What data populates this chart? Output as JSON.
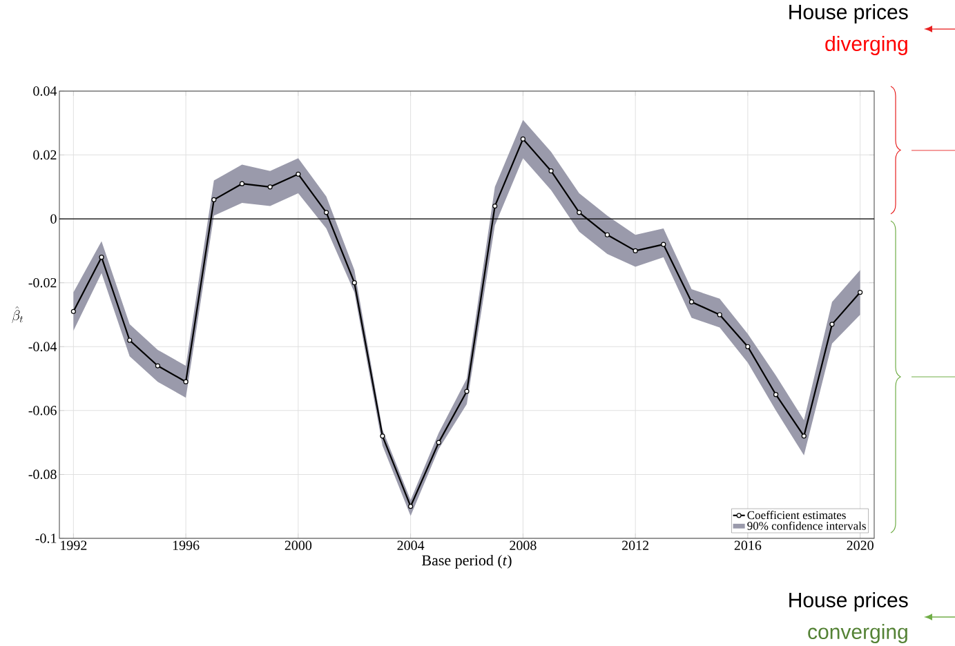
{
  "chart_data": {
    "type": "line",
    "xlabel": "Base period (*t*)",
    "ylabel": "\\hat{\\beta}_t",
    "x": [
      1992,
      1993,
      1994,
      1995,
      1996,
      1997,
      1998,
      1999,
      2000,
      2001,
      2002,
      2003,
      2004,
      2005,
      2006,
      2007,
      2008,
      2009,
      2010,
      2011,
      2012,
      2013,
      2014,
      2015,
      2016,
      2017,
      2018,
      2019,
      2020
    ],
    "series": [
      {
        "name": "Coefficient estimates",
        "color": "#000000",
        "lower": [
          -0.035,
          -0.017,
          -0.043,
          -0.051,
          -0.056,
          0.001,
          0.005,
          0.004,
          0.008,
          -0.003,
          -0.023,
          -0.071,
          -0.093,
          -0.072,
          -0.058,
          -0.002,
          0.019,
          0.009,
          -0.004,
          -0.011,
          -0.015,
          -0.012,
          -0.031,
          -0.034,
          -0.045,
          -0.06,
          -0.074,
          -0.039,
          -0.03
        ],
        "upper": [
          -0.023,
          -0.007,
          -0.033,
          -0.041,
          -0.046,
          0.012,
          0.017,
          0.015,
          0.019,
          0.007,
          -0.016,
          -0.066,
          -0.088,
          -0.067,
          -0.05,
          0.01,
          0.031,
          0.021,
          0.008,
          0.001,
          -0.005,
          -0.003,
          -0.022,
          -0.025,
          -0.036,
          -0.049,
          -0.063,
          -0.026,
          -0.016
        ],
        "values": [
          -0.029,
          -0.012,
          -0.038,
          -0.046,
          -0.051,
          0.006,
          0.011,
          0.01,
          0.014,
          0.002,
          -0.02,
          -0.068,
          -0.09,
          -0.07,
          -0.054,
          0.004,
          0.025,
          0.015,
          0.002,
          -0.005,
          -0.01,
          -0.008,
          -0.026,
          -0.03,
          -0.04,
          -0.055,
          -0.068,
          -0.033,
          -0.023
        ]
      }
    ],
    "xlim": [
      1991.5,
      2020.5
    ],
    "xticks": [
      1992,
      1996,
      2000,
      2004,
      2008,
      2012,
      2016,
      2020
    ],
    "ylim": [
      -0.1,
      0.04
    ],
    "yticks": [
      -0.1,
      -0.08,
      -0.06,
      -0.04,
      -0.02,
      0,
      0.02,
      0.04
    ],
    "ref_lines": [
      {
        "axis": "y",
        "value": 0,
        "color": "#000000"
      }
    ],
    "grid": true,
    "legend": "bottom right",
    "marker": "circle",
    "line_style": "solid",
    "annotations": [
      "House prices",
      "diverging",
      "House prices",
      "converging",
      "90% confidence intervals"
    ]
  }
}
